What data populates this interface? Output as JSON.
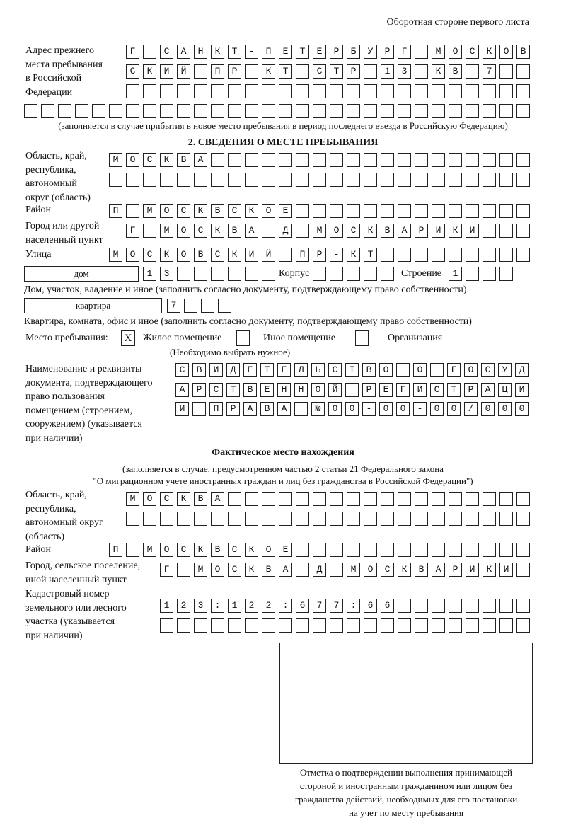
{
  "header": "Оборотная стороне первого листа",
  "prev_address": {
    "label": [
      "Адрес прежнего",
      "места пребывания",
      "в Российской",
      "Федерации"
    ],
    "rows": [
      "Г САНКТ-ПЕТЕРБУРГ МОСКОВ",
      "СКИЙ ПР-КТ СТР 13 КВ 7  ",
      "",
      "",
      ""
    ],
    "note": "(заполняется в случае прибытия в новое место пребывания в период последнего въезда в Российскую Федерацию)"
  },
  "section2": {
    "title": "2. СВЕДЕНИЯ О МЕСТЕ ПРЕБЫВАНИЯ",
    "region_label": [
      "Область, край,",
      "республика,",
      "автономный",
      "округ (область)"
    ],
    "region_rows": [
      "МОСКВА",
      ""
    ],
    "district_label": "Район",
    "district": "П МОСКВСКОЕ",
    "city_label": [
      "Город или другой",
      "населенный пункт"
    ],
    "city": "Г МОСКВА Д МОСКВАРИКИ",
    "street_label": "Улица",
    "street": "МОСКОВСКИЙ ПР-КТ",
    "house_type": "дом",
    "house": "13",
    "korpus_label": "Корпус",
    "korpus": "",
    "building_label": "Строение",
    "building": "1",
    "house_note": "Дом, участок, владение и иное (заполнить согласно документу, подтверждающему право собственности)",
    "flat_type": "квартира",
    "flat": "7",
    "flat_note": "Квартира, комната, офис и иное (заполнить согласно документу, подтверждающему право собственности)",
    "place_label": "Место пребывания:",
    "options": [
      {
        "label": "Жилое помещение",
        "mark": "X"
      },
      {
        "label": "Иное помещение",
        "mark": ""
      },
      {
        "label": "Организация",
        "mark": ""
      }
    ],
    "choose_note": "(Необходимо выбрать нужное)",
    "doc_label": [
      "Наименование и реквизиты",
      "документа, подтверждающего",
      "право пользования",
      "помещением (строением,",
      "сооружением) (указывается",
      "при наличии)"
    ],
    "doc_rows": [
      "СВИДЕТЕЛЬСТВО О ГОСУД",
      "АРСТВЕННОЙ РЕГИСТРАЦИ",
      "И ПРАВА №00-00-00/000"
    ]
  },
  "actual": {
    "title": "Фактическое место нахождения",
    "note1": "(заполняется в случае, предусмотренном частью 2 статьи 21 Федерального закона",
    "note2": "\"О миграционном учете иностранных граждан и лиц без гражданства в Российской Федерации\")",
    "region_label": [
      "Область, край,",
      "республика,",
      "автономный округ",
      "(область)"
    ],
    "region_rows": [
      "МОСКВА",
      ""
    ],
    "district_label": "Район",
    "district": "П МОСКВСКОЕ",
    "city_label": [
      "Город, сельское поселение,",
      "иной населенный пункт"
    ],
    "city": "Г МОСКВА Д МОСКВАРИКИ",
    "cadastre_label": [
      "Кадастровый номер",
      "земельного или лесного",
      "участка (указывается",
      "при наличии)"
    ],
    "cadastre_rows": [
      "123:122:677:66",
      ""
    ]
  },
  "stamp_caption": [
    "Отметка о подтверждении выполнения принимающей",
    "стороной и иностранным гражданином или лицом без",
    "гражданства действий, необходимых для его постановки",
    "на учет по месту пребывания"
  ]
}
